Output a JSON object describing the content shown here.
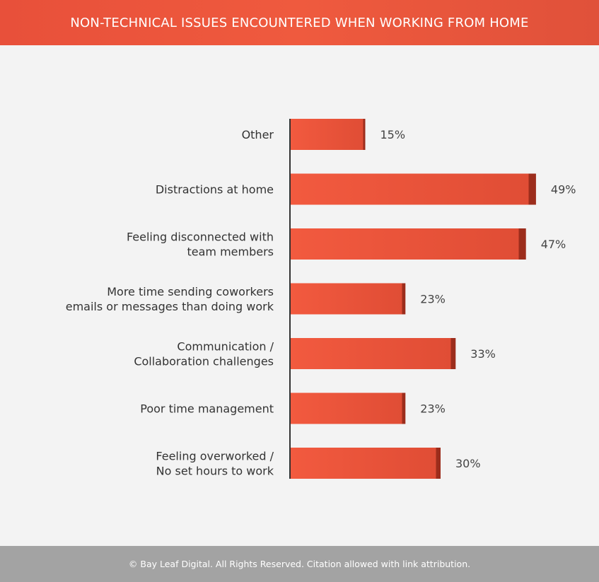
{
  "header": {
    "title": "NON-TECHNICAL ISSUES ENCOUNTERED WHEN WORKING FROM HOME"
  },
  "footer": {
    "text": "© Bay Leaf Digital. All Rights Reserved. Citation allowed with link attribution."
  },
  "colors": {
    "bar": "#ef5a3e",
    "bar_end": "#b8341f",
    "header": "#ea533b",
    "footer": "#a3a3a3"
  },
  "chart_data": {
    "type": "bar",
    "orientation": "horizontal",
    "title": "NON-TECHNICAL ISSUES ENCOUNTERED WHEN WORKING FROM HOME",
    "categories": [
      [
        "Other"
      ],
      [
        "Distractions at home"
      ],
      [
        "Feeling disconnected with",
        "team members"
      ],
      [
        "More time sending coworkers",
        "emails or messages than doing work"
      ],
      [
        "Communication /",
        "Collaboration challenges"
      ],
      [
        "Poor time management"
      ],
      [
        "Feeling overworked /",
        "No set hours to work"
      ]
    ],
    "values": [
      15,
      49,
      47,
      23,
      33,
      23,
      30
    ],
    "value_labels": [
      "15%",
      "49%",
      "47%",
      "23%",
      "33%",
      "23%",
      "30%"
    ],
    "unit": "%",
    "xlim": [
      0,
      55
    ],
    "grid": false,
    "legend": "none"
  }
}
